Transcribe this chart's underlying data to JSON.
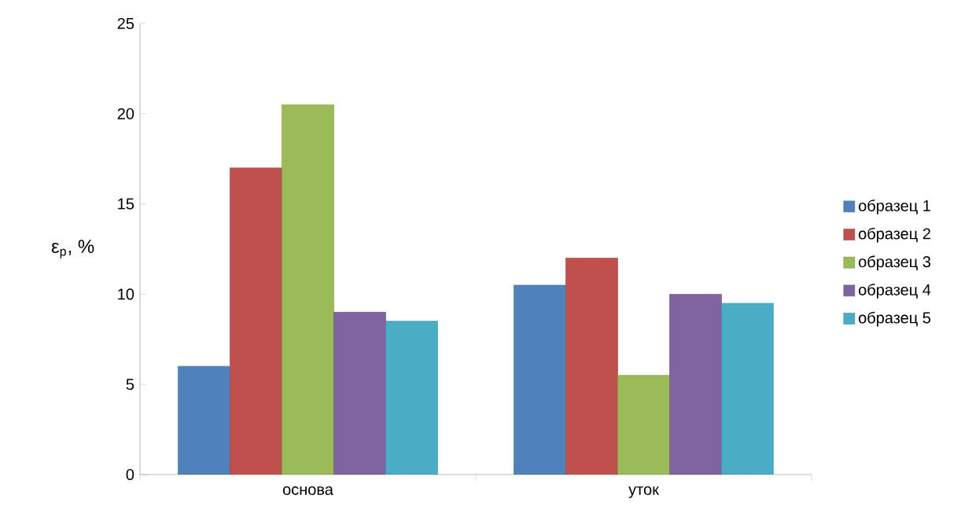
{
  "chart_data": {
    "type": "bar",
    "ylabel": "ε$_{р}$, %",
    "categories": [
      "основа",
      "уток"
    ],
    "series": [
      {
        "name": "образец 1",
        "color": "#4f81bd",
        "values": [
          6,
          10.5
        ]
      },
      {
        "name": "образец 2",
        "color": "#c0504d",
        "values": [
          17,
          12
        ]
      },
      {
        "name": "образец 3",
        "color": "#9bbb59",
        "values": [
          20.5,
          5.5
        ]
      },
      {
        "name": "образец 4",
        "color": "#8064a2",
        "values": [
          9,
          10
        ]
      },
      {
        "name": "образец 5",
        "color": "#4bacc6",
        "values": [
          8.5,
          9.5
        ]
      }
    ],
    "ylim": [
      0,
      25
    ],
    "yticks": [
      0,
      5,
      10,
      15,
      20,
      25
    ],
    "grid": false,
    "legend": "right"
  }
}
